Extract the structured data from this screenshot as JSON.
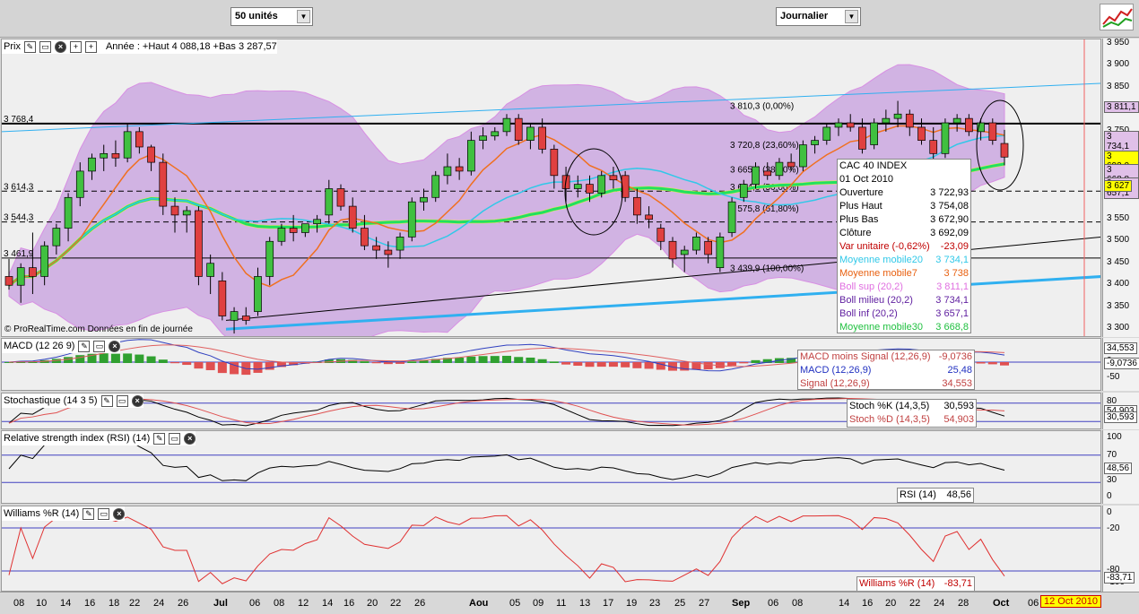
{
  "toolbar": {
    "units": "50 unités",
    "period": "Journalier"
  },
  "price_panel": {
    "title": "Prix",
    "year_info": "Année : +Haut 4 088,18 +Bas 3 287,57",
    "watermark": "© ProRealTime.com Données en fin de journée",
    "levels": [
      {
        "label": "3 768,4",
        "value": 3768.4
      },
      {
        "label": "3 614,3",
        "value": 3614.3
      },
      {
        "label": "3 544,3",
        "value": 3544.3
      },
      {
        "label": "3 461,9",
        "value": 3461.9
      }
    ],
    "fibo": [
      {
        "label": "3 810,3 (0,00%)",
        "value": 3810.3
      },
      {
        "label": "3 720,8 (23,60%)",
        "value": 3720.8
      },
      {
        "label": "3 665,4 (38,20%)",
        "value": 3665.4
      },
      {
        "label": "3 624,6 (50,00%)",
        "value": 3624.6
      },
      {
        "label": "3 575,8 (61,80%)",
        "value": 3575.8
      },
      {
        "label": "3 439,9 (100,00%)",
        "value": 3439.9
      }
    ],
    "axis_ticks": [
      "3 950",
      "3 900",
      "3 850",
      "3 800",
      "3 750",
      "3 700",
      "3 650",
      "3 600",
      "3 550",
      "3 500",
      "3 450",
      "3 400",
      "3 350",
      "3 300"
    ],
    "tags": [
      {
        "text": "3 811,1",
        "color": "#e0c0e8"
      },
      {
        "text": "3 734,1",
        "color": "#e0c0e8"
      },
      {
        "text": "3 692,0",
        "color": "#ffff00"
      },
      {
        "text": "3 668,8",
        "color": "#e0c0e8"
      },
      {
        "text": "3 657,1",
        "color": "#e0c0e8"
      },
      {
        "text": "3 627",
        "color": "#ffff00"
      }
    ],
    "info": {
      "title": "CAC 40 INDEX",
      "date": "01 Oct 2010",
      "rows": [
        {
          "k": "Ouverture",
          "v": "3 722,93",
          "color": "#000"
        },
        {
          "k": "Plus Haut",
          "v": "3 754,08",
          "color": "#000"
        },
        {
          "k": "Plus Bas",
          "v": "3 672,90",
          "color": "#000"
        },
        {
          "k": "Clôture",
          "v": "3 692,09",
          "color": "#000"
        },
        {
          "k": "Var unitaire (-0,62%)",
          "v": "-23,09",
          "color": "#c00000"
        },
        {
          "k": "Moyenne mobile20",
          "v": "3 734,1",
          "color": "#30c8e8"
        },
        {
          "k": "Moyenne mobile7",
          "v": "3 738",
          "color": "#e86010"
        },
        {
          "k": "Boll sup (20,2)",
          "v": "3 811,1",
          "color": "#e070e0"
        },
        {
          "k": "Boll milieu (20,2)",
          "v": "3 734,1",
          "color": "#6020a0"
        },
        {
          "k": "Boll inf (20,2)",
          "v": "3 657,1",
          "color": "#6020a0"
        },
        {
          "k": "Moyenne mobile30",
          "v": "3 668,8",
          "color": "#20c040"
        }
      ]
    }
  },
  "macd_panel": {
    "title": "MACD (12 26 9)",
    "rows": [
      {
        "k": "MACD moins Signal (12,26,9)",
        "v": "-9,0736",
        "color": "#c04040"
      },
      {
        "k": "MACD (12,26,9)",
        "v": "25,48",
        "color": "#2030c0"
      },
      {
        "k": "Signal (12,26,9)",
        "v": "34,553",
        "color": "#c04040"
      }
    ],
    "axis_ticks": [
      "0",
      "-50"
    ],
    "tags": [
      {
        "text": "34,553",
        "color": "#ffffff"
      },
      {
        "text": "-9,0736",
        "color": "#ffffff"
      }
    ]
  },
  "stoch_panel": {
    "title": "Stochastique (14 3 5)",
    "rows": [
      {
        "k": "Stoch %K (14,3,5)",
        "v": "30,593",
        "color": "#000"
      },
      {
        "k": "Stoch %D (14,3,5)",
        "v": "54,903",
        "color": "#c04040"
      }
    ],
    "axis_ticks": [
      "80",
      "20"
    ],
    "tags": [
      {
        "text": "54,903",
        "color": "#ffffff"
      },
      {
        "text": "30,593",
        "color": "#ffffff"
      }
    ]
  },
  "rsi_panel": {
    "title": "Relative strength index (RSI) (14)",
    "rows": [
      {
        "k": "RSI (14)",
        "v": "48,56",
        "color": "#000"
      }
    ],
    "axis_ticks": [
      "100",
      "70",
      "30",
      "0"
    ],
    "tags": [
      {
        "text": "48,56",
        "color": "#ffffff"
      }
    ]
  },
  "williams_panel": {
    "title": "Williams %R (14)",
    "rows": [
      {
        "k": "Williams %R (14)",
        "v": "-83,71",
        "color": "#c00000"
      }
    ],
    "axis_ticks": [
      "0",
      "-20",
      "-80",
      "-100"
    ],
    "tags": [
      {
        "text": "-83,71",
        "color": "#ffffff"
      }
    ]
  },
  "x_axis": {
    "ticks": [
      "08",
      "10",
      "14",
      "16",
      "18",
      "22",
      "24",
      "26",
      "Jul",
      "06",
      "08",
      "12",
      "14",
      "16",
      "20",
      "22",
      "26",
      "Aou",
      "05",
      "09",
      "11",
      "13",
      "17",
      "19",
      "23",
      "25",
      "27",
      "Sep",
      "06",
      "08",
      "14",
      "16",
      "20",
      "22",
      "24",
      "28",
      "Oct",
      "06"
    ],
    "end_label": "12 Oct 2010"
  },
  "chart_data": {
    "type": "candlestick",
    "title": "CAC 40 INDEX",
    "ylim": [
      3280,
      3960
    ],
    "candles": [
      {
        "o": 3420,
        "h": 3460,
        "l": 3390,
        "c": 3400
      },
      {
        "o": 3400,
        "h": 3450,
        "l": 3360,
        "c": 3440
      },
      {
        "o": 3440,
        "h": 3520,
        "l": 3380,
        "c": 3420
      },
      {
        "o": 3420,
        "h": 3500,
        "l": 3400,
        "c": 3490
      },
      {
        "o": 3490,
        "h": 3540,
        "l": 3470,
        "c": 3530
      },
      {
        "o": 3530,
        "h": 3610,
        "l": 3500,
        "c": 3600
      },
      {
        "o": 3600,
        "h": 3680,
        "l": 3580,
        "c": 3660
      },
      {
        "o": 3660,
        "h": 3700,
        "l": 3640,
        "c": 3690
      },
      {
        "o": 3690,
        "h": 3720,
        "l": 3660,
        "c": 3700
      },
      {
        "o": 3700,
        "h": 3730,
        "l": 3670,
        "c": 3690
      },
      {
        "o": 3690,
        "h": 3770,
        "l": 3680,
        "c": 3750
      },
      {
        "o": 3750,
        "h": 3760,
        "l": 3700,
        "c": 3715
      },
      {
        "o": 3715,
        "h": 3720,
        "l": 3660,
        "c": 3680
      },
      {
        "o": 3680,
        "h": 3700,
        "l": 3560,
        "c": 3580
      },
      {
        "o": 3580,
        "h": 3600,
        "l": 3520,
        "c": 3560
      },
      {
        "o": 3560,
        "h": 3580,
        "l": 3520,
        "c": 3570
      },
      {
        "o": 3570,
        "h": 3580,
        "l": 3400,
        "c": 3420
      },
      {
        "o": 3420,
        "h": 3470,
        "l": 3380,
        "c": 3450
      },
      {
        "o": 3410,
        "h": 3430,
        "l": 3320,
        "c": 3330
      },
      {
        "o": 3320,
        "h": 3350,
        "l": 3290,
        "c": 3340
      },
      {
        "o": 3330,
        "h": 3350,
        "l": 3310,
        "c": 3320
      },
      {
        "o": 3340,
        "h": 3440,
        "l": 3330,
        "c": 3420
      },
      {
        "o": 3420,
        "h": 3510,
        "l": 3400,
        "c": 3500
      },
      {
        "o": 3500,
        "h": 3540,
        "l": 3490,
        "c": 3530
      },
      {
        "o": 3530,
        "h": 3560,
        "l": 3500,
        "c": 3520
      },
      {
        "o": 3520,
        "h": 3540,
        "l": 3510,
        "c": 3540
      },
      {
        "o": 3540,
        "h": 3560,
        "l": 3520,
        "c": 3550
      },
      {
        "o": 3560,
        "h": 3640,
        "l": 3540,
        "c": 3620
      },
      {
        "o": 3620,
        "h": 3630,
        "l": 3570,
        "c": 3580
      },
      {
        "o": 3580,
        "h": 3600,
        "l": 3520,
        "c": 3530
      },
      {
        "o": 3530,
        "h": 3560,
        "l": 3480,
        "c": 3490
      },
      {
        "o": 3490,
        "h": 3510,
        "l": 3460,
        "c": 3480
      },
      {
        "o": 3480,
        "h": 3500,
        "l": 3440,
        "c": 3470
      },
      {
        "o": 3480,
        "h": 3520,
        "l": 3460,
        "c": 3510
      },
      {
        "o": 3510,
        "h": 3600,
        "l": 3500,
        "c": 3590
      },
      {
        "o": 3590,
        "h": 3620,
        "l": 3570,
        "c": 3600
      },
      {
        "o": 3600,
        "h": 3660,
        "l": 3590,
        "c": 3650
      },
      {
        "o": 3650,
        "h": 3700,
        "l": 3630,
        "c": 3670
      },
      {
        "o": 3670,
        "h": 3690,
        "l": 3640,
        "c": 3660
      },
      {
        "o": 3660,
        "h": 3750,
        "l": 3650,
        "c": 3730
      },
      {
        "o": 3730,
        "h": 3760,
        "l": 3710,
        "c": 3740
      },
      {
        "o": 3740,
        "h": 3760,
        "l": 3730,
        "c": 3750
      },
      {
        "o": 3750,
        "h": 3790,
        "l": 3740,
        "c": 3780
      },
      {
        "o": 3780,
        "h": 3790,
        "l": 3720,
        "c": 3730
      },
      {
        "o": 3730,
        "h": 3770,
        "l": 3710,
        "c": 3760
      },
      {
        "o": 3760,
        "h": 3780,
        "l": 3700,
        "c": 3710
      },
      {
        "o": 3710,
        "h": 3720,
        "l": 3620,
        "c": 3650
      },
      {
        "o": 3650,
        "h": 3670,
        "l": 3590,
        "c": 3620
      },
      {
        "o": 3620,
        "h": 3650,
        "l": 3600,
        "c": 3630
      },
      {
        "o": 3630,
        "h": 3650,
        "l": 3590,
        "c": 3610
      },
      {
        "o": 3610,
        "h": 3660,
        "l": 3600,
        "c": 3650
      },
      {
        "o": 3650,
        "h": 3670,
        "l": 3620,
        "c": 3640
      },
      {
        "o": 3650,
        "h": 3660,
        "l": 3590,
        "c": 3600
      },
      {
        "o": 3600,
        "h": 3620,
        "l": 3540,
        "c": 3560
      },
      {
        "o": 3560,
        "h": 3580,
        "l": 3530,
        "c": 3550
      },
      {
        "o": 3530,
        "h": 3540,
        "l": 3480,
        "c": 3500
      },
      {
        "o": 3500,
        "h": 3510,
        "l": 3440,
        "c": 3460
      },
      {
        "o": 3470,
        "h": 3490,
        "l": 3430,
        "c": 3480
      },
      {
        "o": 3480,
        "h": 3520,
        "l": 3470,
        "c": 3510
      },
      {
        "o": 3500,
        "h": 3510,
        "l": 3450,
        "c": 3470
      },
      {
        "o": 3440,
        "h": 3520,
        "l": 3430,
        "c": 3510
      },
      {
        "o": 3520,
        "h": 3600,
        "l": 3510,
        "c": 3590
      },
      {
        "o": 3600,
        "h": 3640,
        "l": 3590,
        "c": 3630
      },
      {
        "o": 3630,
        "h": 3680,
        "l": 3620,
        "c": 3670
      },
      {
        "o": 3660,
        "h": 3680,
        "l": 3640,
        "c": 3650
      },
      {
        "o": 3650,
        "h": 3690,
        "l": 3640,
        "c": 3680
      },
      {
        "o": 3680,
        "h": 3700,
        "l": 3660,
        "c": 3670
      },
      {
        "o": 3670,
        "h": 3730,
        "l": 3660,
        "c": 3720
      },
      {
        "o": 3720,
        "h": 3740,
        "l": 3700,
        "c": 3730
      },
      {
        "o": 3730,
        "h": 3770,
        "l": 3720,
        "c": 3760
      },
      {
        "o": 3760,
        "h": 3780,
        "l": 3740,
        "c": 3770
      },
      {
        "o": 3770,
        "h": 3790,
        "l": 3750,
        "c": 3760
      },
      {
        "o": 3760,
        "h": 3780,
        "l": 3700,
        "c": 3710
      },
      {
        "o": 3720,
        "h": 3780,
        "l": 3710,
        "c": 3770
      },
      {
        "o": 3770,
        "h": 3800,
        "l": 3750,
        "c": 3780
      },
      {
        "o": 3780,
        "h": 3820,
        "l": 3760,
        "c": 3790
      },
      {
        "o": 3790,
        "h": 3800,
        "l": 3740,
        "c": 3760
      },
      {
        "o": 3760,
        "h": 3780,
        "l": 3720,
        "c": 3730
      },
      {
        "o": 3730,
        "h": 3760,
        "l": 3680,
        "c": 3700
      },
      {
        "o": 3700,
        "h": 3780,
        "l": 3690,
        "c": 3770
      },
      {
        "o": 3770,
        "h": 3790,
        "l": 3750,
        "c": 3780
      },
      {
        "o": 3780,
        "h": 3790,
        "l": 3740,
        "c": 3750
      },
      {
        "o": 3750,
        "h": 3780,
        "l": 3730,
        "c": 3770
      },
      {
        "o": 3770,
        "h": 3780,
        "l": 3720,
        "c": 3730
      },
      {
        "o": 3723,
        "h": 3754,
        "l": 3673,
        "c": 3692
      }
    ]
  }
}
